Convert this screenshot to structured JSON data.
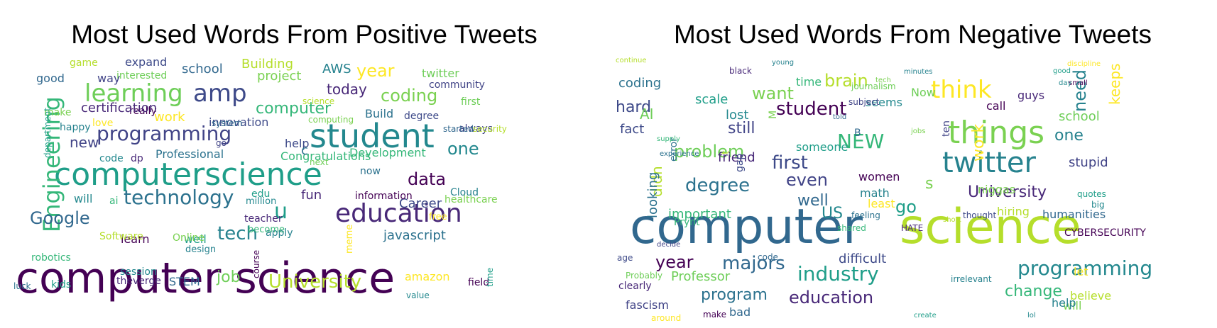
{
  "chart_data": [
    {
      "type": "wordcloud",
      "title": "Most Used Words From Positive Tweets",
      "colormap": "viridis",
      "words": [
        {
          "text": "computer science",
          "w": 100
        },
        {
          "text": "computerscience",
          "w": 92
        },
        {
          "text": "student",
          "w": 74
        },
        {
          "text": "education",
          "w": 64
        },
        {
          "text": "Engineering",
          "w": 60
        },
        {
          "text": "technology",
          "w": 56
        },
        {
          "text": "amp",
          "w": 56
        },
        {
          "text": "learning",
          "w": 54
        },
        {
          "text": "programming",
          "w": 50
        },
        {
          "text": "Google",
          "w": 44
        },
        {
          "text": "University",
          "w": 42
        },
        {
          "text": "coding",
          "w": 40
        },
        {
          "text": "tech",
          "w": 38
        },
        {
          "text": "year",
          "w": 38
        },
        {
          "text": "data",
          "w": 36
        },
        {
          "text": "u",
          "w": 36
        },
        {
          "text": "one",
          "w": 34
        },
        {
          "text": "today",
          "w": 32
        },
        {
          "text": "computer",
          "w": 32
        },
        {
          "text": "javascript",
          "w": 30
        },
        {
          "text": "Career",
          "w": 30
        },
        {
          "text": "job",
          "w": 30
        },
        {
          "text": "new",
          "w": 30
        },
        {
          "text": "school",
          "w": 28
        },
        {
          "text": "Building",
          "w": 26
        },
        {
          "text": "project",
          "w": 26
        },
        {
          "text": "AWS",
          "w": 26
        },
        {
          "text": "work",
          "w": 26
        },
        {
          "text": "learn",
          "w": 26
        },
        {
          "text": "well",
          "w": 26
        },
        {
          "text": "will",
          "w": 26
        },
        {
          "text": "fun",
          "w": 26
        },
        {
          "text": "Development",
          "w": 24
        },
        {
          "text": "Professional",
          "w": 24
        },
        {
          "text": "innovation",
          "w": 24
        },
        {
          "text": "twitter",
          "w": 24
        },
        {
          "text": "community",
          "w": 22
        },
        {
          "text": "STEM",
          "w": 24
        },
        {
          "text": "Software",
          "w": 22
        },
        {
          "text": "Online",
          "w": 22
        },
        {
          "text": "apply",
          "w": 22
        },
        {
          "text": "amazon",
          "w": 22
        },
        {
          "text": "field",
          "w": 22
        },
        {
          "text": "kids",
          "w": 22
        },
        {
          "text": "session",
          "w": 20
        },
        {
          "text": "theverge",
          "w": 20
        },
        {
          "text": "robotics",
          "w": 20
        },
        {
          "text": "luck",
          "w": 20
        },
        {
          "text": "expand",
          "w": 20
        },
        {
          "text": "interested",
          "w": 20
        },
        {
          "text": "way",
          "w": 22
        },
        {
          "text": "good",
          "w": 22
        },
        {
          "text": "game",
          "w": 20
        },
        {
          "text": "make",
          "w": 20
        },
        {
          "text": "happy",
          "w": 20
        },
        {
          "text": "love",
          "w": 20
        },
        {
          "text": "really",
          "w": 20
        },
        {
          "text": "department",
          "w": 18
        },
        {
          "text": "code",
          "w": 20
        },
        {
          "text": "dp",
          "w": 20
        },
        {
          "text": "ai",
          "w": 22
        },
        {
          "text": "Build",
          "w": 22
        },
        {
          "text": "degree",
          "w": 20
        },
        {
          "text": "first",
          "w": 20
        },
        {
          "text": "always",
          "w": 20
        },
        {
          "text": "started",
          "w": 20
        },
        {
          "text": "security",
          "w": 18
        },
        {
          "text": "healthcare",
          "w": 18
        },
        {
          "text": "Cloud",
          "w": 20
        },
        {
          "text": "free",
          "w": 20
        },
        {
          "text": "information",
          "w": 20
        },
        {
          "text": "edu",
          "w": 20
        },
        {
          "text": "million",
          "w": 20
        },
        {
          "text": "teacher",
          "w": 20
        },
        {
          "text": "become",
          "w": 20
        },
        {
          "text": "now",
          "w": 20
        },
        {
          "text": "help",
          "w": 20
        },
        {
          "text": "next",
          "w": 18
        },
        {
          "text": "go",
          "w": 22
        },
        {
          "text": "system",
          "w": 18
        },
        {
          "text": "science",
          "w": 18
        },
        {
          "text": "computing",
          "w": 18
        },
        {
          "text": "design",
          "w": 18
        },
        {
          "text": "meme",
          "w": 18
        },
        {
          "text": "course",
          "w": 18
        },
        {
          "text": "time",
          "w": 20
        },
        {
          "text": "value",
          "w": 18
        },
        {
          "text": "certification",
          "w": 18
        },
        {
          "text": "Congratulations",
          "w": 16
        },
        {
          "text": "c",
          "w": 20
        },
        {
          "text": "t",
          "w": 20
        },
        {
          "text": "s",
          "w": 20
        }
      ]
    },
    {
      "type": "wordcloud",
      "title": "Most Used Words From Negative Tweets",
      "colormap": "viridis",
      "words": [
        {
          "text": "computer",
          "w": 100
        },
        {
          "text": "science",
          "w": 100
        },
        {
          "text": "things",
          "w": 64
        },
        {
          "text": "twitter",
          "w": 58
        },
        {
          "text": "think",
          "w": 52
        },
        {
          "text": "student",
          "w": 44
        },
        {
          "text": "industry",
          "w": 44
        },
        {
          "text": "programming",
          "w": 44
        },
        {
          "text": "education",
          "w": 40
        },
        {
          "text": "NEW",
          "w": 40
        },
        {
          "text": "degree",
          "w": 40
        },
        {
          "text": "first",
          "w": 38
        },
        {
          "text": "problem",
          "w": 36
        },
        {
          "text": "even",
          "w": 36
        },
        {
          "text": "majors",
          "w": 36
        },
        {
          "text": "brain",
          "w": 34
        },
        {
          "text": "want",
          "w": 34
        },
        {
          "text": "need",
          "w": 34
        },
        {
          "text": "work",
          "w": 34
        },
        {
          "text": "year",
          "w": 34
        },
        {
          "text": "go",
          "w": 34
        },
        {
          "text": "US",
          "w": 32
        },
        {
          "text": "University",
          "w": 32
        },
        {
          "text": "change",
          "w": 32
        },
        {
          "text": "program",
          "w": 32
        },
        {
          "text": "hard",
          "w": 30
        },
        {
          "text": "AI",
          "w": 30
        },
        {
          "text": "still",
          "w": 30
        },
        {
          "text": "well",
          "w": 30
        },
        {
          "text": "didn",
          "w": 30
        },
        {
          "text": "s",
          "w": 30
        },
        {
          "text": "one",
          "w": 30
        },
        {
          "text": "keeps",
          "w": 28
        },
        {
          "text": "call",
          "w": 28
        },
        {
          "text": "scale",
          "w": 28
        },
        {
          "text": "lost",
          "w": 28
        },
        {
          "text": "friend",
          "w": 28
        },
        {
          "text": "important",
          "w": 28
        },
        {
          "text": "looking",
          "w": 26
        },
        {
          "text": "difficult",
          "w": 28
        },
        {
          "text": "school",
          "w": 28
        },
        {
          "text": "stupid",
          "w": 26
        },
        {
          "text": "humanities",
          "w": 26
        },
        {
          "text": "hiring",
          "w": 26
        },
        {
          "text": "niggas",
          "w": 26
        },
        {
          "text": "math",
          "w": 26
        },
        {
          "text": "least",
          "w": 26
        },
        {
          "text": "women",
          "w": 24
        },
        {
          "text": "someone",
          "w": 24
        },
        {
          "text": "seems",
          "w": 24
        },
        {
          "text": "guys",
          "w": 24
        },
        {
          "text": "time",
          "w": 24
        },
        {
          "text": "coding",
          "w": 24
        },
        {
          "text": "fact",
          "w": 24
        },
        {
          "text": "Professor",
          "w": 24
        },
        {
          "text": "fascism",
          "w": 24
        },
        {
          "text": "bad",
          "w": 26
        },
        {
          "text": "believe",
          "w": 26
        },
        {
          "text": "will",
          "w": 26
        },
        {
          "text": "help",
          "w": 24
        },
        {
          "text": "let",
          "w": 24
        },
        {
          "text": "CYBERSECURITY",
          "w": 22
        },
        {
          "text": "quotes",
          "w": 20
        },
        {
          "text": "big",
          "w": 20
        },
        {
          "text": "clearly",
          "w": 22
        },
        {
          "text": "Prynt",
          "w": 22
        },
        {
          "text": "error",
          "w": 22
        },
        {
          "text": "gap",
          "w": 22
        },
        {
          "text": "Now",
          "w": 22
        },
        {
          "text": "ten",
          "w": 22
        },
        {
          "text": "B",
          "w": 22
        },
        {
          "text": "t",
          "w": 22
        },
        {
          "text": "M",
          "w": 22
        },
        {
          "text": "irrelevant",
          "w": 20
        },
        {
          "text": "around",
          "w": 20
        },
        {
          "text": "make",
          "w": 20
        },
        {
          "text": "create",
          "w": 18
        },
        {
          "text": "lol",
          "w": 18
        },
        {
          "text": "HATE",
          "w": 18
        },
        {
          "text": "shared",
          "w": 18
        },
        {
          "text": "feeling",
          "w": 18
        },
        {
          "text": "thought",
          "w": 18
        },
        {
          "text": "journalism",
          "w": 18
        },
        {
          "text": "subject",
          "w": 18
        },
        {
          "text": "told",
          "w": 18
        },
        {
          "text": "short",
          "w": 18
        },
        {
          "text": "jobs",
          "w": 16
        },
        {
          "text": "minutes",
          "w": 16
        },
        {
          "text": "discipline",
          "w": 16
        },
        {
          "text": "small",
          "w": 16
        },
        {
          "text": "good",
          "w": 16
        },
        {
          "text": "day",
          "w": 16
        },
        {
          "text": "black",
          "w": 16
        },
        {
          "text": "supply",
          "w": 16
        },
        {
          "text": "experience",
          "w": 16
        },
        {
          "text": "age",
          "w": 16
        },
        {
          "text": "Probably",
          "w": 16
        },
        {
          "text": "decide",
          "w": 16
        },
        {
          "text": "code",
          "w": 16
        },
        {
          "text": "continue",
          "w": 14
        },
        {
          "text": "tech",
          "w": 16
        },
        {
          "text": "young",
          "w": 14
        }
      ]
    }
  ]
}
